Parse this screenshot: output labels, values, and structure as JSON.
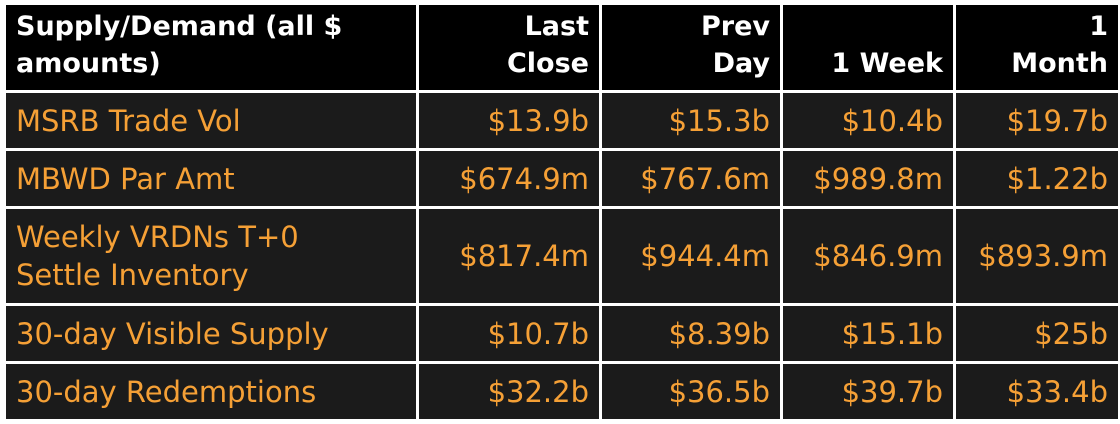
{
  "chart_data": {
    "type": "table",
    "header": {
      "label": "Supply/Demand (all $ amounts)",
      "columns": [
        "Last Close",
        "Prev Day",
        "1 Week",
        "1 Month"
      ]
    },
    "rows": [
      {
        "label": "MSRB Trade Vol",
        "values": [
          "$13.9b",
          "$15.3b",
          "$10.4b",
          "$19.7b"
        ]
      },
      {
        "label": "MBWD Par Amt",
        "values": [
          "$674.9m",
          "$767.6m",
          "$989.8m",
          "$1.22b"
        ]
      },
      {
        "label": "Weekly VRDNs T+0 Settle Inventory",
        "values": [
          "$817.4m",
          "$944.4m",
          "$846.9m",
          "$893.9m"
        ]
      },
      {
        "label": "30-day Visible Supply",
        "values": [
          "$10.7b",
          "$8.39b",
          "$15.1b",
          "$25b"
        ]
      },
      {
        "label": "30-day Redemptions",
        "values": [
          "$32.2b",
          "$36.5b",
          "$39.7b",
          "$33.4b"
        ]
      }
    ]
  },
  "colors": {
    "header_bg": "#000000",
    "header_text": "#ffffff",
    "row_bg": "#1b1b1b",
    "row_text": "#f5a036",
    "gridline": "#ffffff"
  },
  "display": {
    "header_label_lines": [
      "Supply/Demand (all $",
      "amounts)"
    ],
    "column_lines": [
      [
        "Last",
        "Close"
      ],
      [
        "Prev",
        "Day"
      ],
      [
        "1 Week"
      ],
      [
        "1",
        "Month"
      ]
    ],
    "row_label_lines": [
      [
        "MSRB Trade Vol"
      ],
      [
        "MBWD Par Amt"
      ],
      [
        "Weekly VRDNs T+0",
        "Settle Inventory"
      ],
      [
        "30-day Visible Supply"
      ],
      [
        "30-day Redemptions"
      ]
    ]
  }
}
